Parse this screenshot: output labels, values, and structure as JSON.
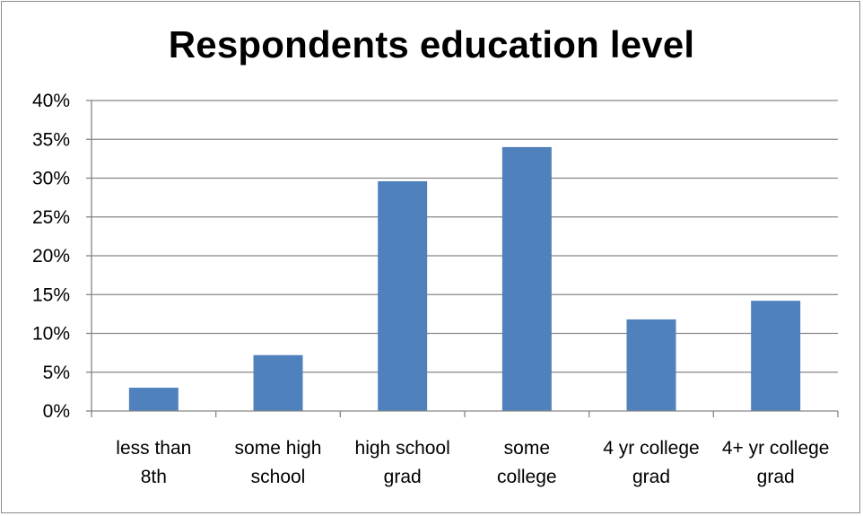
{
  "chart_data": {
    "type": "bar",
    "title": "Respondents education level",
    "xlabel": "",
    "ylabel": "",
    "categories": [
      [
        "less than",
        "8th"
      ],
      [
        "some high",
        "school"
      ],
      [
        "high school",
        "grad"
      ],
      [
        "some",
        "college"
      ],
      [
        "4 yr college",
        "grad"
      ],
      [
        "4+ yr college",
        "grad"
      ]
    ],
    "values": [
      3.0,
      7.2,
      29.6,
      34.0,
      11.8,
      14.2
    ],
    "ylim": [
      0,
      40
    ],
    "yticks": [
      0,
      5,
      10,
      15,
      20,
      25,
      30,
      35,
      40
    ],
    "ytick_labels": [
      "0%",
      "5%",
      "10%",
      "15%",
      "20%",
      "25%",
      "30%",
      "35%",
      "40%"
    ],
    "grid": true,
    "legend": "none",
    "colors": {
      "bar": "#4f81bd",
      "grid": "#868686",
      "axis": "#868686"
    }
  }
}
